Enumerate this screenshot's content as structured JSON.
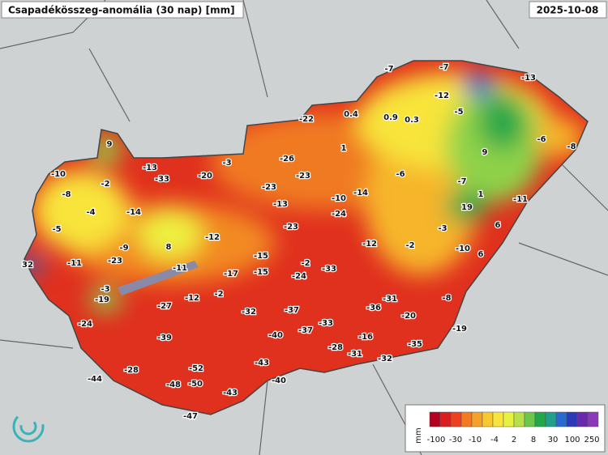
{
  "header": {
    "title": "Csapadékösszeg-anomália (30 nap) [mm]",
    "date": "2025-10-08"
  },
  "stations": [
    -7,
    -7,
    -13,
    -12,
    -5,
    0.4,
    0.9,
    0.3,
    -22,
    9,
    1,
    9,
    -6,
    -8,
    -3,
    -26,
    -13,
    -33,
    -20,
    -10,
    -2,
    -23,
    -6,
    -7,
    -23,
    -8,
    1,
    -14,
    -10,
    -11,
    -13,
    19,
    -4,
    -14,
    -24,
    -5,
    -3,
    6,
    -12,
    -9,
    8,
    -23,
    -12,
    -2,
    -10,
    6,
    32,
    -11,
    -23,
    -11,
    -15,
    -2,
    -33,
    -17,
    -15,
    -24,
    -3,
    -19,
    -12,
    -2,
    -27,
    -8,
    -31,
    -36,
    -37,
    -32,
    -20,
    -24,
    -33,
    -37,
    -40,
    -39,
    -19,
    -16,
    -35,
    -28,
    -31,
    -32,
    -52,
    -43,
    -28,
    -44,
    -48,
    -50,
    -40,
    -43,
    -47
  ],
  "legend": {
    "unit": "mm",
    "labels": [
      "-100",
      "-30",
      "-10",
      "-4",
      "2",
      "8",
      "30",
      "100",
      "250"
    ]
  }
}
